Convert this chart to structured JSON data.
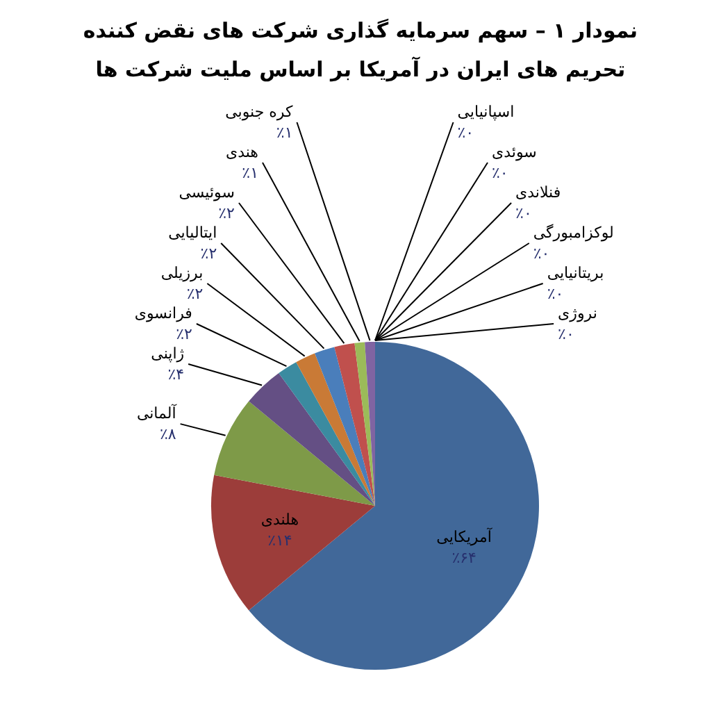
{
  "chart_data": {
    "type": "pie",
    "title": "نمودار ۱ – سهم سرمایه گذاری شرکت های نقض کننده تحریم های ایران در آمریکا بر اساس ملیت شرکت ها",
    "categories": [
      "آمریکایی",
      "هلندی",
      "آلمانی",
      "ژاپنی",
      "فرانسوی",
      "برزیلی",
      "ایتالیایی",
      "سوئیسی",
      "هندی",
      "کره جنوبی",
      "اسپانیایی",
      "سوئدی",
      "فنلاندی",
      "لوکزامبورگی",
      "بریتانیایی",
      "نروژی"
    ],
    "values": [
      64,
      14,
      8,
      4,
      2,
      2,
      2,
      2,
      1,
      1,
      0,
      0,
      0,
      0,
      0,
      0
    ],
    "colors": [
      "#416899",
      "#9c3d3a",
      "#7e9a48",
      "#644f84",
      "#3b8ba0",
      "#c97a36",
      "#4a7ebb",
      "#c0504d",
      "#9bbb59",
      "#8064a2",
      "#4bacc6",
      "#f79646",
      "#a9bcd9",
      "#dba9a8",
      "#c9d9a9",
      "#b9accc"
    ],
    "value_labels": [
      "٪۶۴",
      "٪۱۴",
      "٪۸",
      "٪۴",
      "٪۲",
      "٪۲",
      "٪۲",
      "٪۲",
      "٪۱",
      "٪۱",
      "٪۰",
      "٪۰",
      "٪۰",
      "٪۰",
      "٪۰",
      "٪۰"
    ],
    "legend": false
  }
}
